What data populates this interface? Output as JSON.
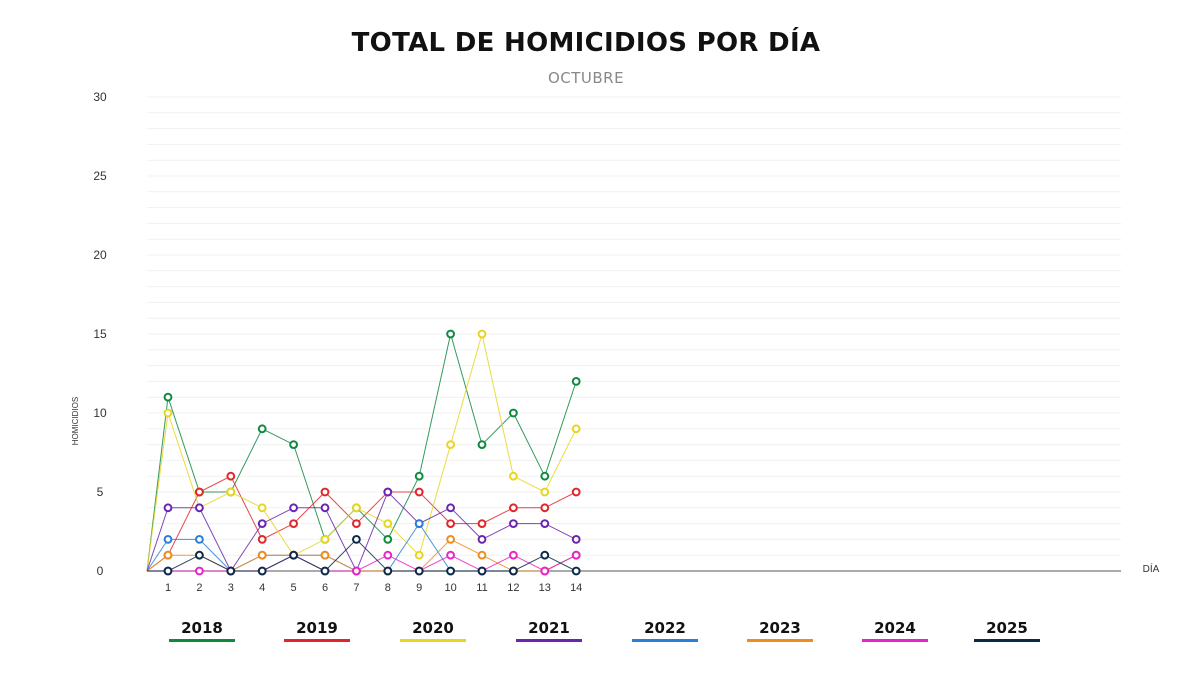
{
  "chart_data": {
    "type": "line",
    "title": "TOTAL DE HOMICIDIOS POR DÍA",
    "subtitle": "OCTUBRE",
    "xlabel": "DÍA",
    "ylabel": "HOMICIDIOS",
    "ylim": [
      0,
      30
    ],
    "yticks": [
      0,
      5,
      10,
      15,
      20,
      25,
      30
    ],
    "x": [
      1,
      2,
      3,
      4,
      5,
      6,
      7,
      8,
      9,
      10,
      11,
      12,
      13,
      14
    ],
    "grid": true,
    "legend": "bottom",
    "series": [
      {
        "name": "2018",
        "color": "#0e8a3f",
        "values": [
          11,
          5,
          5,
          9,
          8,
          2,
          4,
          2,
          6,
          15,
          8,
          10,
          6,
          12
        ]
      },
      {
        "name": "2019",
        "color": "#e0262b",
        "values": [
          1,
          5,
          6,
          2,
          3,
          5,
          3,
          5,
          5,
          3,
          3,
          4,
          4,
          5
        ]
      },
      {
        "name": "2020",
        "color": "#e8d520",
        "values": [
          10,
          4,
          5,
          4,
          1,
          2,
          4,
          3,
          1,
          8,
          15,
          6,
          5,
          9
        ]
      },
      {
        "name": "2021",
        "color": "#6a24b0",
        "values": [
          4,
          4,
          0,
          3,
          4,
          4,
          0,
          5,
          3,
          4,
          2,
          3,
          3,
          2
        ]
      },
      {
        "name": "2022",
        "color": "#2b7fd6",
        "values": [
          2,
          2,
          0,
          1,
          1,
          1,
          0,
          0,
          3,
          0,
          0,
          0,
          0,
          1
        ]
      },
      {
        "name": "2023",
        "color": "#f08c1c",
        "values": [
          1,
          1,
          0,
          1,
          1,
          1,
          0,
          0,
          0,
          2,
          1,
          0,
          0,
          1
        ]
      },
      {
        "name": "2024",
        "color": "#ea22c8",
        "values": [
          0,
          0,
          0,
          0,
          1,
          0,
          0,
          1,
          0,
          1,
          0,
          1,
          0,
          1
        ]
      },
      {
        "name": "2025",
        "color": "#0b2a4a",
        "values": [
          0,
          1,
          0,
          0,
          1,
          0,
          2,
          0,
          0,
          0,
          0,
          0,
          1,
          0
        ]
      }
    ]
  }
}
